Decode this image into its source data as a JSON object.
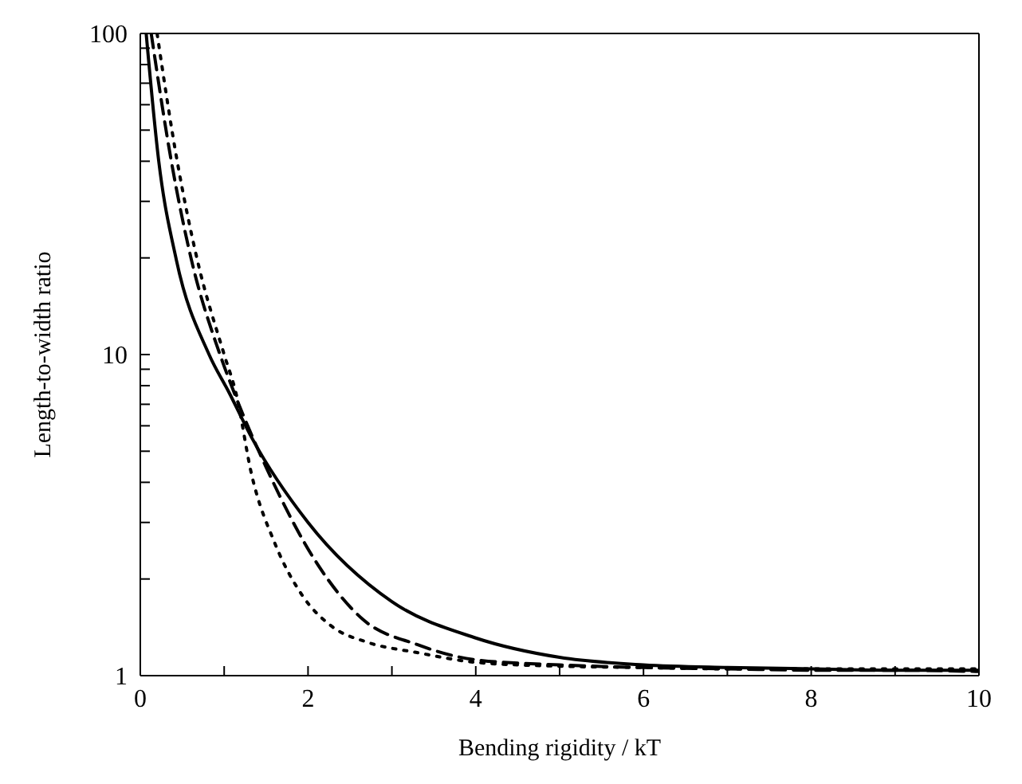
{
  "chart_data": {
    "type": "line",
    "xlabel": "Bending rigidity / kT",
    "ylabel": "Length-to-width ratio",
    "log": "y",
    "grid": false,
    "legend": false,
    "marker": "none",
    "xlim": [
      0,
      10
    ],
    "xticks": [
      0,
      {
        "value": 1,
        "label": null
      },
      2,
      {
        "value": 3,
        "label": null
      },
      4,
      {
        "value": 5,
        "label": null
      },
      6,
      {
        "value": 7,
        "label": null
      },
      8,
      {
        "value": 9,
        "label": null
      },
      10
    ],
    "ylim": [
      1,
      100
    ],
    "yticks": [
      1,
      {
        "value": 2,
        "label": null
      },
      {
        "value": 3,
        "label": null
      },
      {
        "value": 4,
        "label": null
      },
      {
        "value": 5,
        "label": null
      },
      {
        "value": 6,
        "label": null
      },
      {
        "value": 7,
        "label": null
      },
      {
        "value": 8,
        "label": null
      },
      {
        "value": 9,
        "label": null
      },
      10,
      {
        "value": 20,
        "label": null
      },
      {
        "value": 30,
        "label": null
      },
      {
        "value": 40,
        "label": null
      },
      {
        "value": 50,
        "label": null
      },
      {
        "value": 60,
        "label": null
      },
      {
        "value": 70,
        "label": null
      },
      {
        "value": 80,
        "label": null
      },
      {
        "value": 90,
        "label": null
      },
      100
    ],
    "series": [
      {
        "color": "#000000",
        "line_style": "solid",
        "x": [
          0.07,
          0.22,
          0.43,
          0.82,
          1.06,
          1.33,
          2,
          3,
          4,
          5,
          6,
          7,
          8,
          9,
          10
        ],
        "values": [
          100,
          40,
          19.7,
          10,
          7.6,
          5.5,
          3.0,
          1.7,
          1.31,
          1.14,
          1.08,
          1.06,
          1.05,
          1.04,
          1.04
        ]
      },
      {
        "color": "#000000",
        "line_style": "dashed",
        "x": [
          0.13,
          0.37,
          0.61,
          0.95,
          1.12,
          1.51,
          2.11,
          2.65,
          3.3,
          4,
          5,
          6,
          7,
          8,
          9,
          10
        ],
        "values": [
          100,
          40,
          19.7,
          10,
          7.6,
          4.4,
          2.23,
          1.5,
          1.25,
          1.12,
          1.08,
          1.06,
          1.05,
          1.04,
          1.04,
          1.03
        ]
      },
      {
        "color": "#000000",
        "line_style": "dotted",
        "x": [
          0.2,
          0.44,
          0.68,
          1.0,
          1.14,
          1.33,
          1.6,
          1.93,
          2.29,
          2.71,
          3.3,
          4,
          5,
          6,
          7,
          8,
          9,
          10
        ],
        "values": [
          100,
          40,
          19.7,
          10,
          7.6,
          4.2,
          2.6,
          1.78,
          1.42,
          1.27,
          1.18,
          1.1,
          1.07,
          1.06,
          1.05,
          1.05,
          1.05,
          1.05
        ]
      }
    ]
  }
}
